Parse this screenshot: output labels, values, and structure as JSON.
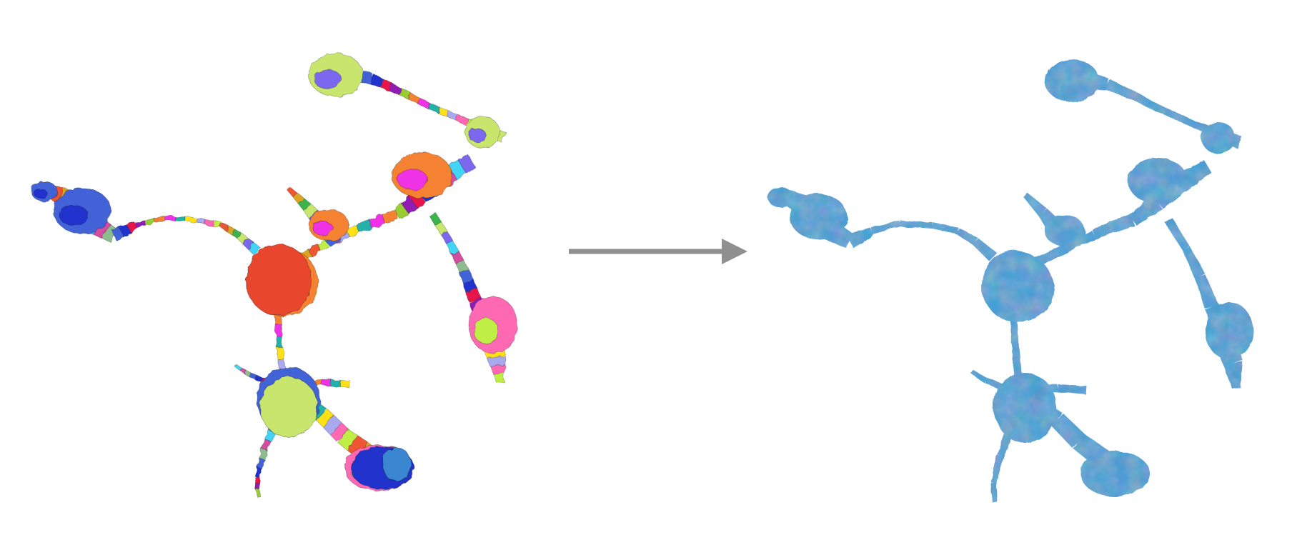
{
  "figure": {
    "left_panel": {
      "state": "over-segmented",
      "fragment_palette": [
        "#e6194b",
        "#f58231",
        "#ffe119",
        "#bfef45",
        "#3cb44b",
        "#42d4f4",
        "#4363d8",
        "#911eb4",
        "#f032e6",
        "#a9a9f0",
        "#ee5533",
        "#c8e66e",
        "#d44da0",
        "#2233cc",
        "#9acd32",
        "#20b2aa",
        "#ff69b4",
        "#daa520",
        "#7b68ee",
        "#8fbc8f"
      ]
    },
    "arrow": {
      "direction": "right",
      "color": "#8f8f8f"
    },
    "right_panel": {
      "state": "merged",
      "color": "#3f9fd6"
    }
  }
}
